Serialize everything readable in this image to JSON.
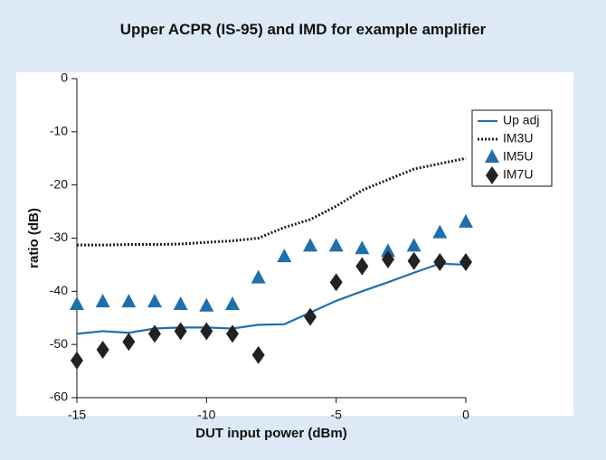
{
  "chart_data": {
    "type": "line",
    "title": "Upper ACPR (IS-95) and IMD for example amplifier",
    "xlabel": "DUT input power (dBm)",
    "ylabel": "ratio (dB)",
    "x": [
      -15,
      -14,
      -13,
      -12,
      -11,
      -10,
      -9,
      -8,
      -7,
      -6,
      -5,
      -4,
      -3,
      -2,
      -1,
      0
    ],
    "series": [
      {
        "name": "Up adj",
        "color": "#1f6fad",
        "style": "solid",
        "values": [
          -48,
          -47.5,
          -47.8,
          -47,
          -46.8,
          -46.8,
          -47,
          -46.3,
          -46.2,
          -44,
          -41.8,
          -40,
          -38.3,
          -36.5,
          -34.8,
          -35
        ]
      },
      {
        "name": "IM3U",
        "color": "#222222",
        "style": "dotted",
        "values": [
          -31.3,
          -31.3,
          -31.2,
          -31.2,
          -31.1,
          -30.8,
          -30.5,
          -30,
          -28,
          -26.5,
          -24,
          -21,
          -19,
          -17,
          -16,
          -15
        ]
      },
      {
        "name": "IM5U",
        "color": "#1f6fad",
        "style": "triangle",
        "values": [
          -42.5,
          -42,
          -42,
          -42,
          -42.5,
          -42.8,
          -42.5,
          -37.5,
          -33.5,
          -31.5,
          -31.5,
          -32,
          -32.5,
          -31.5,
          -29,
          -27
        ]
      },
      {
        "name": "IM7U",
        "color": "#222222",
        "style": "diamond",
        "values": [
          -53,
          -51,
          -49.5,
          -48,
          -47.5,
          -47.5,
          -48,
          -52,
          null,
          -44.8,
          -38.3,
          -35.3,
          -34,
          -34.3,
          -34.5,
          -34.5
        ]
      }
    ],
    "xlim": [
      -15,
      0
    ],
    "xticks": [
      -15,
      -10,
      -5,
      0
    ],
    "ylim": [
      -60,
      0
    ],
    "yticks": [
      0,
      -10,
      -20,
      -30,
      -40,
      -50,
      -60
    ],
    "grid": false,
    "legend": "upper right"
  }
}
